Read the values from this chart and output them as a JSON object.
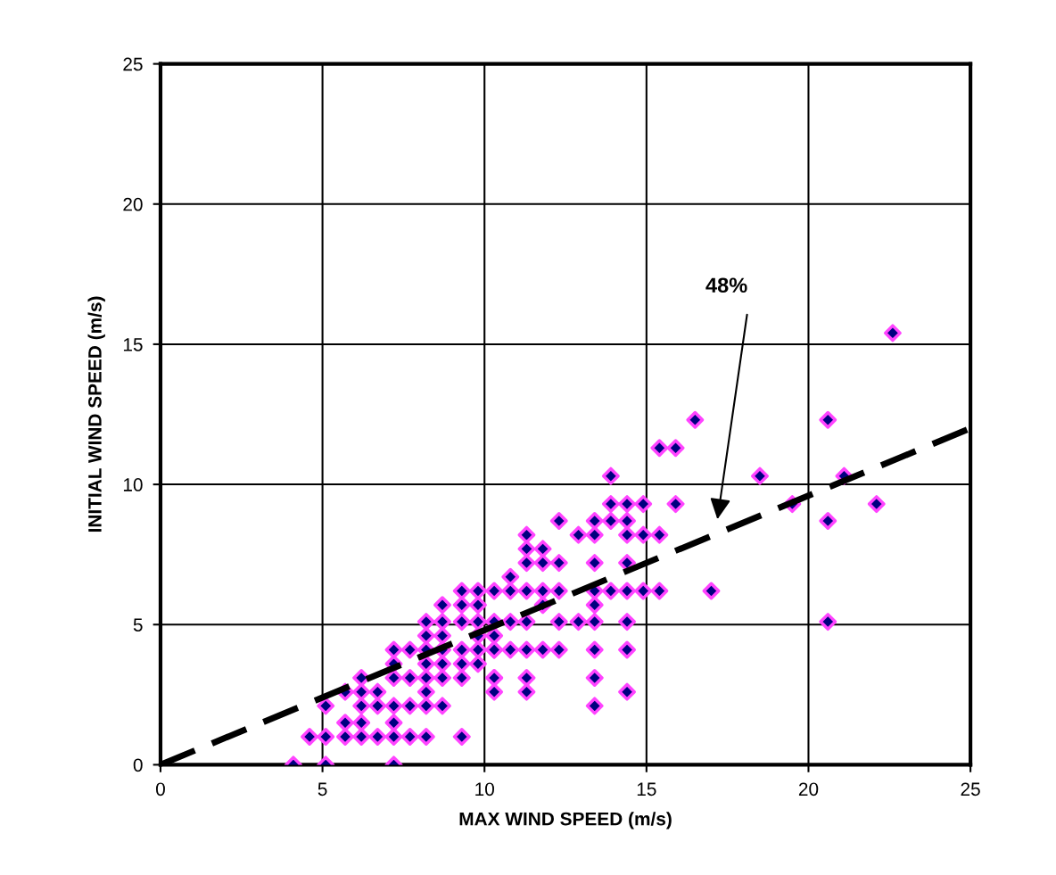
{
  "chart_data": {
    "type": "scatter",
    "xlabel": "MAX WIND SPEED (m/s)",
    "ylabel": "INITIAL WIND SPEED (m/s)",
    "xlim": [
      0,
      25
    ],
    "ylim": [
      0,
      25
    ],
    "xticks": [
      0,
      5,
      10,
      15,
      20,
      25
    ],
    "yticks": [
      0,
      5,
      10,
      15,
      20,
      25
    ],
    "grid": true,
    "annotations": [
      "48%"
    ],
    "series": [
      {
        "color": "#ff44ff",
        "marker": "diamond",
        "x": [
          4.1,
          5.1,
          7.2,
          4.6,
          5.1,
          5.7,
          6.2,
          6.7,
          7.2,
          7.7,
          8.2,
          9.3,
          5.7,
          6.2,
          7.2,
          5.1,
          6.2,
          6.7,
          7.2,
          7.7,
          8.2,
          8.7,
          5.7,
          6.2,
          6.7,
          8.2,
          6.2,
          7.2,
          7.7,
          8.2,
          8.7,
          9.3,
          10.3,
          7.2,
          8.2,
          8.7,
          9.3,
          9.8,
          7.2,
          7.7,
          8.2,
          8.7,
          9.3,
          9.8,
          10.3,
          8.2,
          8.7,
          9.8,
          10.3,
          8.2,
          8.7,
          9.3,
          9.8,
          10.3,
          8.7,
          9.3,
          9.8,
          9.3,
          9.8,
          10.3,
          13.9,
          14.4,
          14.9,
          15.9,
          12.3,
          13.4,
          13.9,
          14.4,
          11.3,
          12.9,
          13.4,
          14.4,
          14.9,
          15.4,
          11.3,
          11.8,
          11.3,
          11.8,
          12.3,
          13.4,
          14.4,
          10.8,
          10.8,
          11.3,
          11.8,
          12.3,
          13.4,
          13.9,
          14.4,
          14.9,
          15.4,
          17.0,
          11.8,
          13.4,
          10.8,
          11.3,
          12.3,
          12.9,
          13.4,
          14.4,
          10.3,
          10.8,
          11.3,
          11.8,
          12.3,
          13.4,
          14.4,
          10.3,
          11.3,
          13.4,
          10.3,
          11.3,
          14.4,
          13.4,
          22.6,
          16.5,
          20.6,
          15.4,
          15.9,
          13.9,
          18.5,
          21.1,
          19.5,
          22.1,
          20.6,
          20.6
        ],
        "values": [
          0,
          0,
          0,
          1.0,
          1.0,
          1.0,
          1.0,
          1.0,
          1.0,
          1.0,
          1.0,
          1.0,
          1.5,
          1.5,
          1.5,
          2.1,
          2.1,
          2.1,
          2.1,
          2.1,
          2.1,
          2.1,
          2.6,
          2.6,
          2.6,
          2.6,
          3.1,
          3.1,
          3.1,
          3.1,
          3.1,
          3.1,
          3.1,
          3.6,
          3.6,
          3.6,
          3.6,
          3.6,
          4.1,
          4.1,
          4.1,
          4.1,
          4.1,
          4.1,
          4.1,
          4.6,
          4.6,
          4.6,
          4.6,
          5.1,
          5.1,
          5.1,
          5.1,
          5.1,
          5.7,
          5.7,
          5.7,
          6.2,
          6.2,
          6.2,
          9.3,
          9.3,
          9.3,
          9.3,
          8.7,
          8.7,
          8.7,
          8.7,
          8.2,
          8.2,
          8.2,
          8.2,
          8.2,
          8.2,
          7.7,
          7.7,
          7.2,
          7.2,
          7.2,
          7.2,
          7.2,
          6.7,
          6.2,
          6.2,
          6.2,
          6.2,
          6.2,
          6.2,
          6.2,
          6.2,
          6.2,
          6.2,
          5.7,
          5.7,
          5.1,
          5.1,
          5.1,
          5.1,
          5.1,
          5.1,
          4.1,
          4.1,
          4.1,
          4.1,
          4.1,
          4.1,
          4.1,
          3.1,
          3.1,
          3.1,
          2.6,
          2.6,
          2.6,
          2.1,
          15.4,
          12.3,
          12.3,
          11.3,
          11.3,
          10.3,
          10.3,
          10.3,
          9.3,
          9.3,
          8.7,
          5.1
        ]
      },
      {
        "type": "line",
        "color": "#000000",
        "line_style": "dashed",
        "x": [
          0,
          25
        ],
        "values": [
          0,
          12
        ]
      }
    ]
  }
}
